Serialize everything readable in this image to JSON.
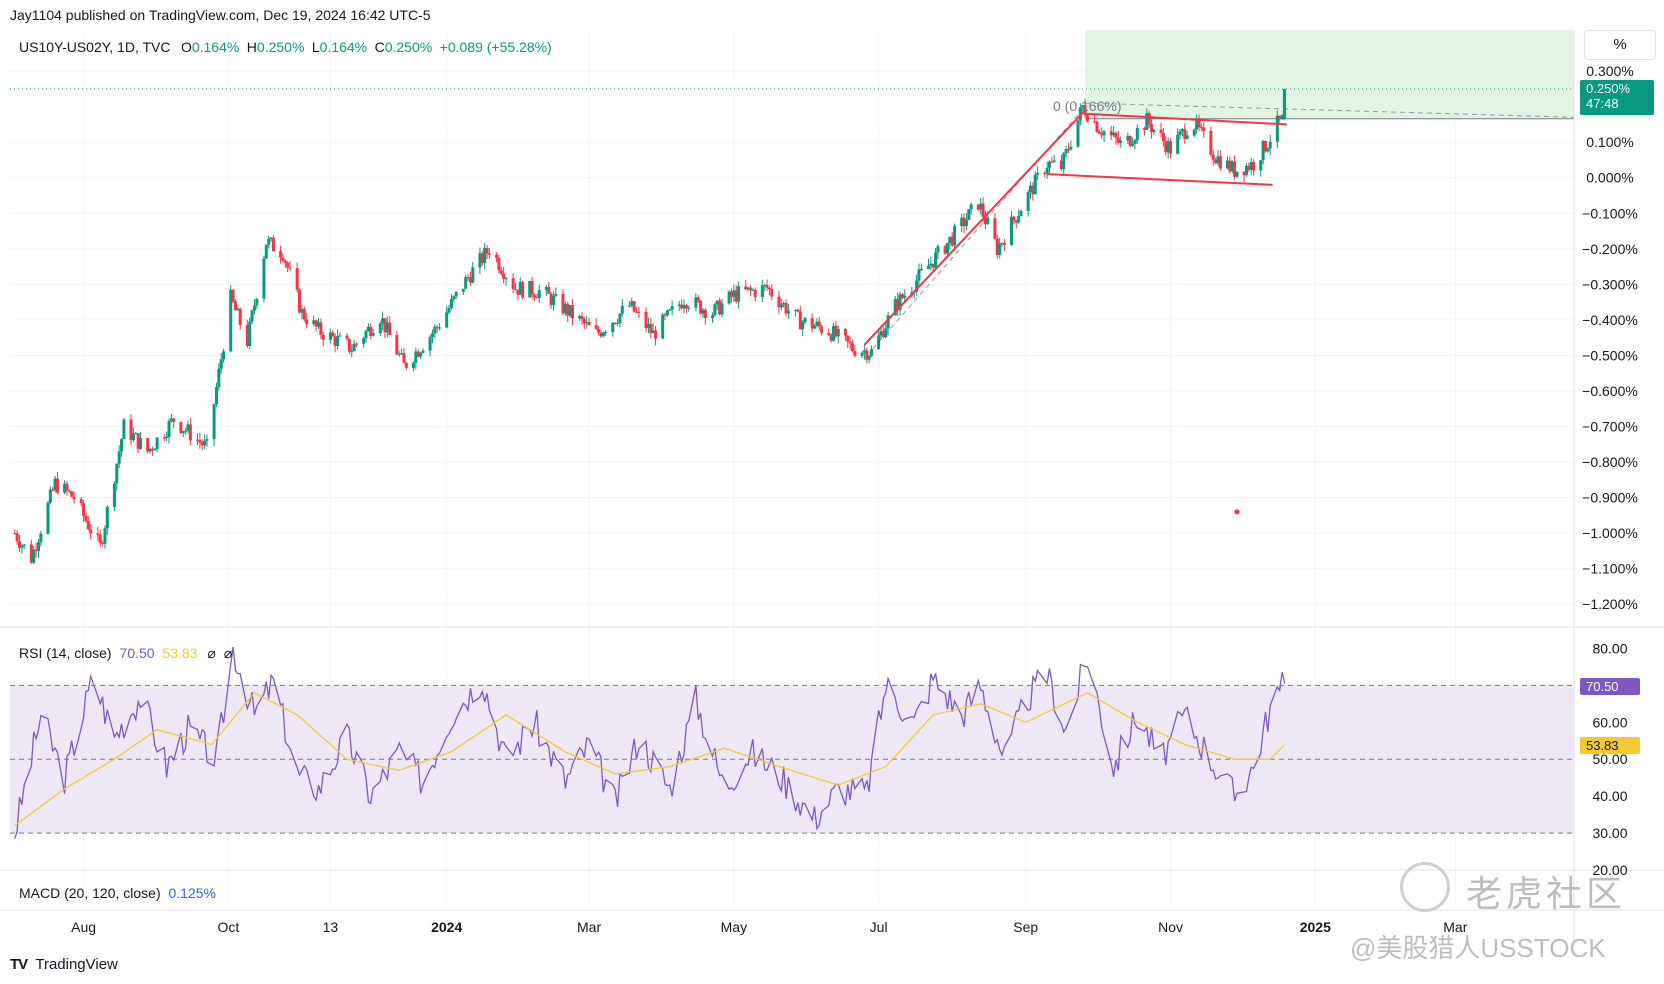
{
  "header": {
    "published": "Jay1104 published on TradingView.com, Dec 19, 2024 16:42 UTC-5"
  },
  "legend": {
    "symbol": "US10Y-US02Y, 1D, TVC",
    "o_label": "O",
    "o_value": "0.164%",
    "h_label": "H",
    "h_value": "0.250%",
    "l_label": "L",
    "l_value": "0.164%",
    "c_label": "C",
    "c_value": "0.250%",
    "change": "+0.089 (+55.28%)"
  },
  "scale_unit": "%",
  "price_tag": {
    "value": "0.250%",
    "countdown": "47:48"
  },
  "fib_label": "0 (0.166%)",
  "rsi": {
    "title": "RSI (14, close)",
    "value": "70.50",
    "ma_value": "53.83",
    "icons": [
      "⌀",
      "⌀"
    ]
  },
  "macd": {
    "title": "MACD (20, 120, close)",
    "value": "0.125%"
  },
  "footer": {
    "brand": "TradingView"
  },
  "watermark": {
    "line1": "老虎社区",
    "line2": "@美股猎人USSTOCK"
  },
  "colors": {
    "up": "#089981",
    "down": "#f23645",
    "rsi": "#7e57c2",
    "rsi_ma": "#f7c930",
    "trend": "#f23645",
    "zone": "#d8f2dc",
    "rsi_band": "#ede7f6"
  },
  "chart_data": {
    "type": "candlestick",
    "x_labels": [
      "Aug",
      "Oct",
      "13",
      "2024",
      "Mar",
      "May",
      "Jul",
      "Sep",
      "Nov",
      "2025",
      "Mar"
    ],
    "y_ticks": [
      "0.300%",
      "0.100%",
      "0.000%",
      "−0.100%",
      "−0.200%",
      "−0.300%",
      "−0.400%",
      "−0.500%",
      "−0.600%",
      "−0.700%",
      "−0.800%",
      "−0.900%",
      "−1.000%",
      "−1.100%",
      "−1.200%"
    ],
    "ylim": [
      -1.25,
      0.32
    ],
    "last": {
      "open": 0.164,
      "high": 0.25,
      "low": 0.164,
      "close": 0.25
    },
    "path": [
      [
        "2023-07-03",
        -1.0
      ],
      [
        "2023-07-10",
        -1.07
      ],
      [
        "2023-07-20",
        -0.86
      ],
      [
        "2023-07-28",
        -0.9
      ],
      [
        "2023-08-08",
        -1.04
      ],
      [
        "2023-08-18",
        -0.7
      ],
      [
        "2023-08-28",
        -0.77
      ],
      [
        "2023-09-08",
        -0.68
      ],
      [
        "2023-09-22",
        -0.76
      ],
      [
        "2023-10-02",
        -0.34
      ],
      [
        "2023-10-09",
        -0.46
      ],
      [
        "2023-10-17",
        -0.18
      ],
      [
        "2023-10-24",
        -0.21
      ],
      [
        "2023-11-01",
        -0.38
      ],
      [
        "2023-11-08",
        -0.43
      ],
      [
        "2023-11-22",
        -0.48
      ],
      [
        "2023-12-04",
        -0.39
      ],
      [
        "2023-12-14",
        -0.53
      ],
      [
        "2023-12-28",
        -0.42
      ],
      [
        "2024-01-10",
        -0.28
      ],
      [
        "2024-01-19",
        -0.2
      ],
      [
        "2024-01-30",
        -0.31
      ],
      [
        "2024-02-10",
        -0.32
      ],
      [
        "2024-02-20",
        -0.37
      ],
      [
        "2024-03-04",
        -0.44
      ],
      [
        "2024-03-18",
        -0.36
      ],
      [
        "2024-03-28",
        -0.44
      ],
      [
        "2024-04-10",
        -0.34
      ],
      [
        "2024-04-22",
        -0.38
      ],
      [
        "2024-05-01",
        -0.33
      ],
      [
        "2024-05-15",
        -0.31
      ],
      [
        "2024-05-28",
        -0.4
      ],
      [
        "2024-06-10",
        -0.43
      ],
      [
        "2024-06-20",
        -0.48
      ],
      [
        "2024-06-28",
        -0.49
      ],
      [
        "2024-07-08",
        -0.36
      ],
      [
        "2024-07-18",
        -0.28
      ],
      [
        "2024-08-02",
        -0.16
      ],
      [
        "2024-08-12",
        -0.07
      ],
      [
        "2024-08-20",
        -0.2
      ],
      [
        "2024-09-01",
        -0.06
      ],
      [
        "2024-09-10",
        0.04
      ],
      [
        "2024-09-16",
        0.03
      ],
      [
        "2024-09-25",
        0.2
      ],
      [
        "2024-10-02",
        0.14
      ],
      [
        "2024-10-12",
        0.09
      ],
      [
        "2024-10-22",
        0.16
      ],
      [
        "2024-11-01",
        0.08
      ],
      [
        "2024-11-10",
        0.16
      ],
      [
        "2024-11-20",
        0.06
      ],
      [
        "2024-11-28",
        0.02
      ],
      [
        "2024-12-06",
        0.04
      ],
      [
        "2024-12-12",
        0.1
      ],
      [
        "2024-12-16",
        0.15
      ],
      [
        "2024-12-18",
        0.16
      ],
      [
        "2024-12-19",
        0.25
      ]
    ],
    "annotations": {
      "rising_line": [
        [
          "2024-06-25",
          -0.47
        ],
        [
          "2024-09-26",
          0.19
        ]
      ],
      "flag_upper": [
        [
          "2024-09-26",
          0.18
        ],
        [
          "2024-12-20",
          0.15
        ]
      ],
      "flag_lower": [
        [
          "2024-09-10",
          0.01
        ],
        [
          "2024-12-14",
          -0.02
        ]
      ],
      "fib_level": 0.166,
      "zone": [
        "2024-09-26",
        "2025-03-31"
      ],
      "dot": [
        "2024-11-29",
        -0.94
      ]
    },
    "rsi": {
      "ylim": [
        20,
        85
      ],
      "y_ticks": [
        "80.00",
        "60.00",
        "50.00",
        "40.00",
        "30.00",
        "20.00"
      ],
      "band": [
        30,
        70
      ],
      "mid": 50,
      "path": [
        [
          "2023-07-03",
          30
        ],
        [
          "2023-07-14",
          62
        ],
        [
          "2023-07-24",
          45
        ],
        [
          "2023-08-05",
          72
        ],
        [
          "2023-08-14",
          56
        ],
        [
          "2023-08-25",
          67
        ],
        [
          "2023-09-05",
          48
        ],
        [
          "2023-09-14",
          58
        ],
        [
          "2023-09-26",
          50
        ],
        [
          "2023-10-03",
          80
        ],
        [
          "2023-10-12",
          62
        ],
        [
          "2023-10-20",
          71
        ],
        [
          "2023-10-30",
          46
        ],
        [
          "2023-11-08",
          42
        ],
        [
          "2023-11-20",
          56
        ],
        [
          "2023-11-30",
          40
        ],
        [
          "2023-12-12",
          52
        ],
        [
          "2023-12-22",
          44
        ],
        [
          "2024-01-03",
          62
        ],
        [
          "2024-01-16",
          72
        ],
        [
          "2024-01-26",
          50
        ],
        [
          "2024-02-07",
          60
        ],
        [
          "2024-02-20",
          44
        ],
        [
          "2024-03-01",
          54
        ],
        [
          "2024-03-12",
          38
        ],
        [
          "2024-03-22",
          56
        ],
        [
          "2024-04-04",
          42
        ],
        [
          "2024-04-15",
          66
        ],
        [
          "2024-04-27",
          42
        ],
        [
          "2024-05-08",
          52
        ],
        [
          "2024-05-20",
          46
        ],
        [
          "2024-06-04",
          34
        ],
        [
          "2024-06-14",
          42
        ],
        [
          "2024-06-26",
          41
        ],
        [
          "2024-07-04",
          70
        ],
        [
          "2024-07-16",
          60
        ],
        [
          "2024-07-24",
          72
        ],
        [
          "2024-08-05",
          62
        ],
        [
          "2024-08-13",
          70
        ],
        [
          "2024-08-23",
          50
        ],
        [
          "2024-09-01",
          66
        ],
        [
          "2024-09-10",
          73
        ],
        [
          "2024-09-18",
          58
        ],
        [
          "2024-09-27",
          78
        ],
        [
          "2024-10-08",
          48
        ],
        [
          "2024-10-18",
          62
        ],
        [
          "2024-10-28",
          50
        ],
        [
          "2024-11-07",
          62
        ],
        [
          "2024-11-18",
          50
        ],
        [
          "2024-11-28",
          40
        ],
        [
          "2024-12-06",
          48
        ],
        [
          "2024-12-13",
          64
        ],
        [
          "2024-12-19",
          70.5
        ]
      ],
      "ma_path": [
        [
          "2023-07-03",
          32
        ],
        [
          "2023-07-24",
          42
        ],
        [
          "2023-08-14",
          50
        ],
        [
          "2023-09-01",
          58
        ],
        [
          "2023-09-24",
          54
        ],
        [
          "2023-10-12",
          68
        ],
        [
          "2023-10-30",
          62
        ],
        [
          "2023-11-20",
          50
        ],
        [
          "2023-12-12",
          47
        ],
        [
          "2024-01-03",
          52
        ],
        [
          "2024-01-26",
          62
        ],
        [
          "2024-02-20",
          52
        ],
        [
          "2024-03-12",
          46
        ],
        [
          "2024-04-04",
          48
        ],
        [
          "2024-04-27",
          53
        ],
        [
          "2024-05-20",
          48
        ],
        [
          "2024-06-14",
          43
        ],
        [
          "2024-07-04",
          48
        ],
        [
          "2024-07-24",
          62
        ],
        [
          "2024-08-13",
          65
        ],
        [
          "2024-09-01",
          60
        ],
        [
          "2024-09-27",
          68
        ],
        [
          "2024-10-18",
          60
        ],
        [
          "2024-11-07",
          54
        ],
        [
          "2024-11-28",
          50
        ],
        [
          "2024-12-13",
          50
        ],
        [
          "2024-12-19",
          53.83
        ]
      ]
    }
  }
}
